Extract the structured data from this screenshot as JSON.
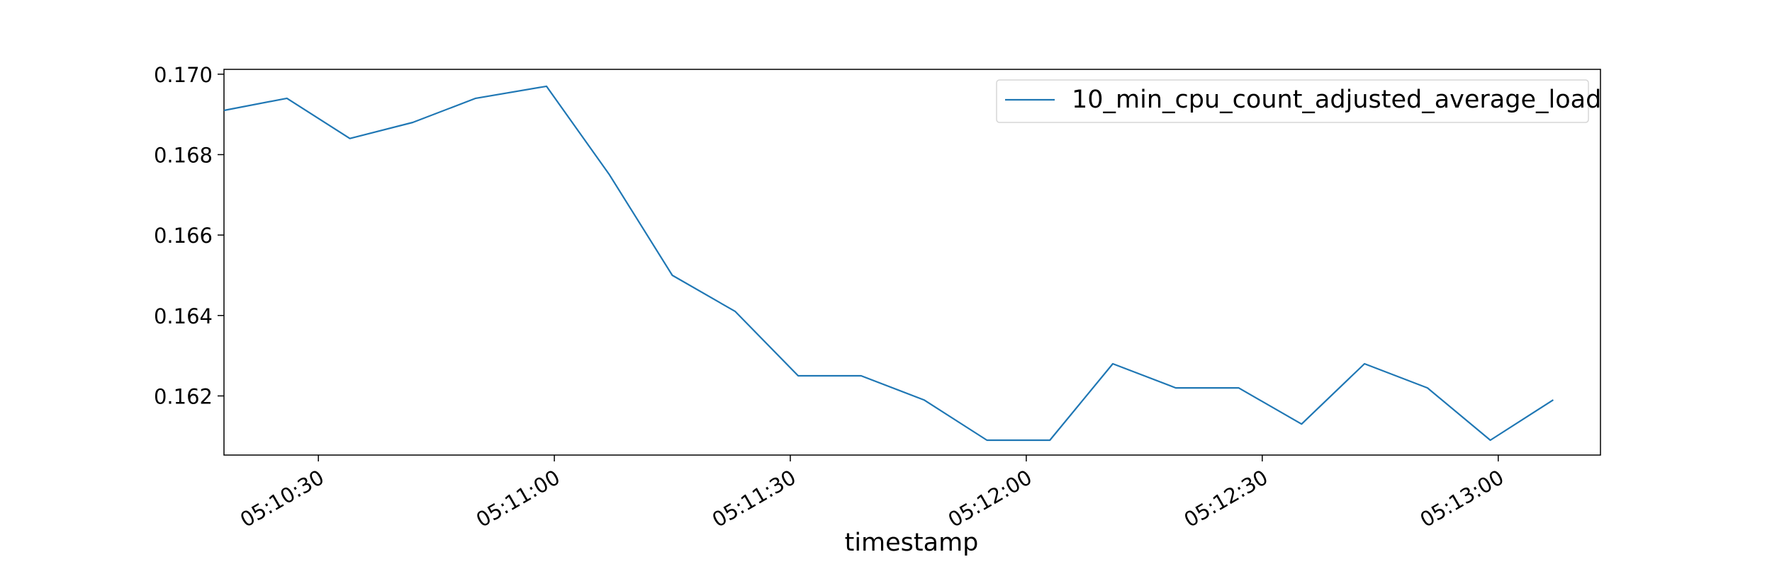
{
  "chart_data": {
    "type": "line",
    "title": "",
    "xlabel": "timestamp",
    "ylabel": "",
    "x": [
      "05:10:18",
      "05:10:26",
      "05:10:34",
      "05:10:42",
      "05:10:50",
      "05:10:59",
      "05:11:07",
      "05:11:15",
      "05:11:23",
      "05:11:31",
      "05:11:39",
      "05:11:47",
      "05:11:55",
      "05:12:03",
      "05:12:11",
      "05:12:19",
      "05:12:27",
      "05:12:35",
      "05:12:43",
      "05:12:51",
      "05:12:59",
      "05:13:07"
    ],
    "series": [
      {
        "name": "10_min_cpu_count_adjusted_average_load",
        "color": "#1f77b4",
        "values": [
          0.1691,
          0.1694,
          0.1684,
          0.1688,
          0.1694,
          0.1697,
          0.1675,
          0.165,
          0.1641,
          0.1625,
          0.1625,
          0.1619,
          0.1609,
          0.1609,
          0.1628,
          0.1622,
          0.1622,
          0.1613,
          0.1628,
          0.1622,
          0.1609,
          0.1619
        ]
      }
    ],
    "x_range": [
      "05:10:18",
      "05:13:13"
    ],
    "ylim": [
      0.16053,
      0.17012
    ],
    "x_ticks": [
      "05:10:30",
      "05:11:00",
      "05:11:30",
      "05:12:00",
      "05:12:30",
      "05:13:00"
    ],
    "y_ticks": [
      "0.162",
      "0.164",
      "0.166",
      "0.168",
      "0.170"
    ],
    "grid": false,
    "legend_position": "top-right"
  }
}
